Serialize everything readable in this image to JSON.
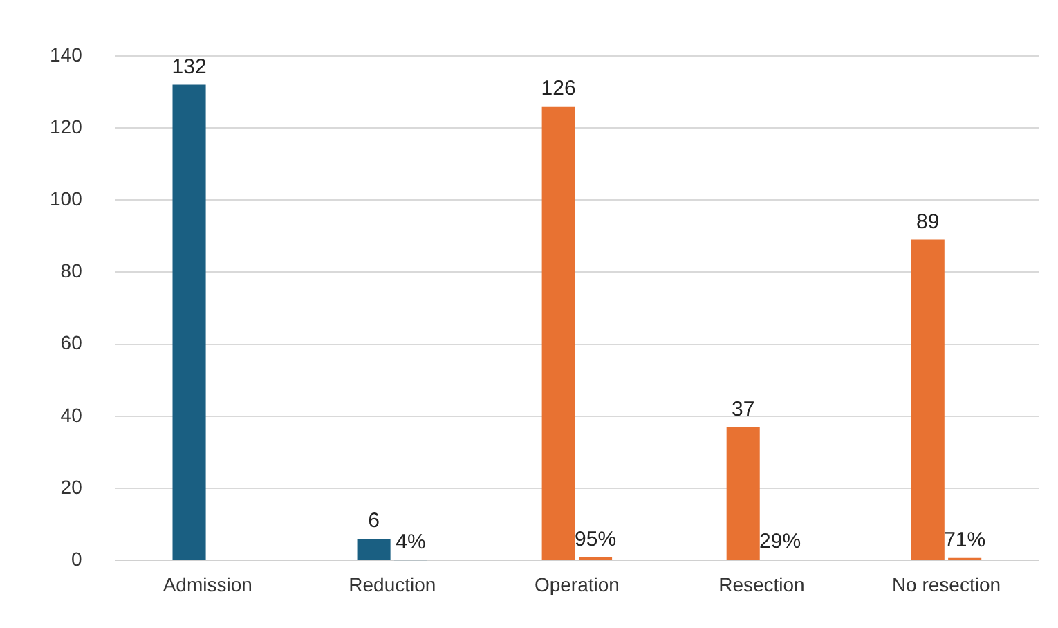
{
  "chart_data": {
    "type": "bar",
    "categories": [
      "Admission",
      "Reduction",
      "Operation",
      "Resection",
      "No resection"
    ],
    "series": [
      {
        "colors": [
          "#1a5f82",
          "#1a5f82",
          "#e87232",
          "#e87232",
          "#e87232"
        ],
        "values": [
          132,
          6,
          126,
          37,
          89
        ],
        "value_labels": [
          "132",
          "6",
          "126",
          "37",
          "89"
        ]
      },
      {
        "colors": [
          "#1a5f82",
          "#1a5f82",
          "#e87232",
          "#e87232",
          "#e87232"
        ],
        "values": [
          null,
          0.04,
          0.95,
          0.29,
          0.71
        ],
        "value_labels": [
          null,
          "4%",
          "95%",
          "29%",
          "71%"
        ]
      }
    ],
    "ylim": [
      0,
      140
    ],
    "yticks": [
      0,
      20,
      40,
      60,
      80,
      100,
      120,
      140
    ],
    "grid": "y",
    "legend": false
  }
}
